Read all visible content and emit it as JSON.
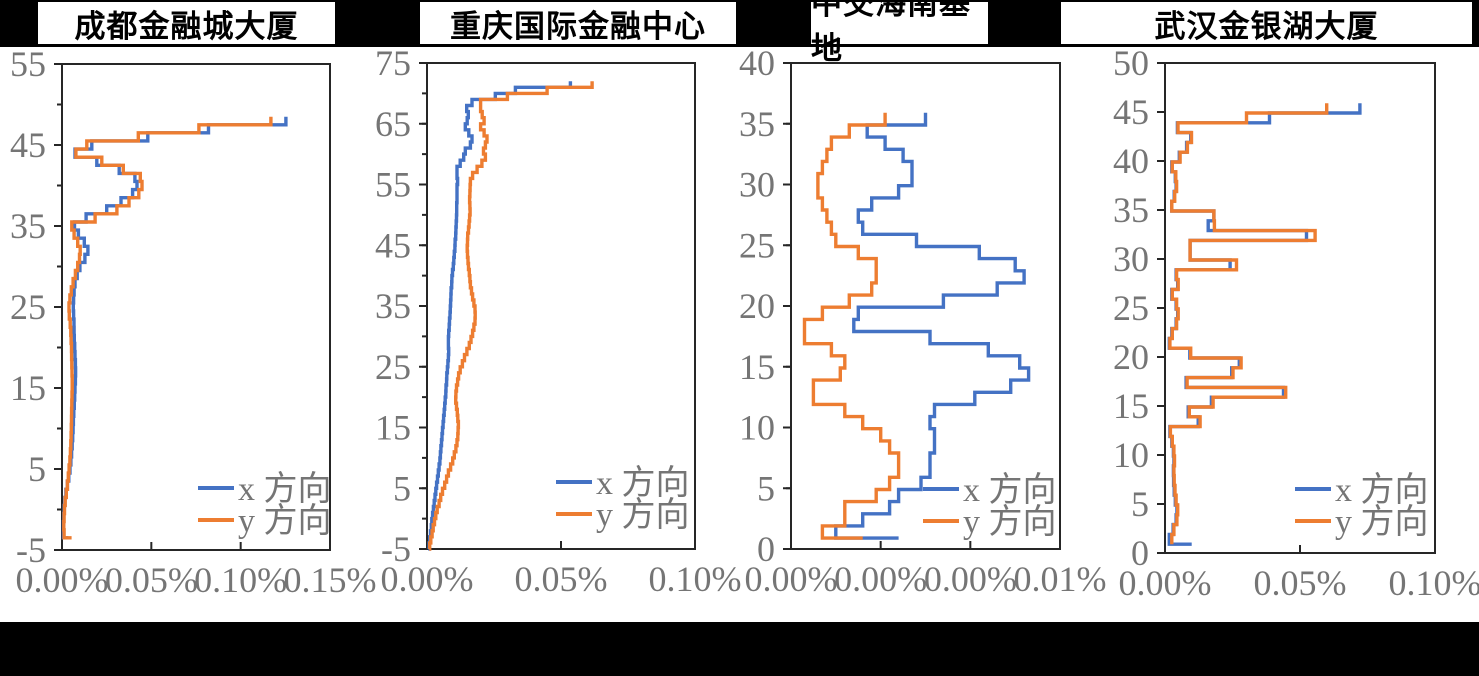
{
  "page": {
    "background": "#000000",
    "band_background": "#ffffff"
  },
  "legend": {
    "x_label": "x 方向",
    "y_label": "y 方向"
  },
  "colors": {
    "x_series": "#4472C4",
    "y_series": "#ED7D31",
    "axis": "#262626",
    "tick_text": "#757575"
  },
  "chart_data": [
    {
      "type": "line",
      "subtype": "step-profile",
      "orientation": "value-x_floor-y",
      "title": "成都金融城大厦",
      "xlabel": "",
      "ylabel": "",
      "units": "%",
      "xlim": [
        0,
        0.15
      ],
      "x_tick_labels": [
        "0.00%",
        "0.05%",
        "0.10%",
        "0.15%"
      ],
      "ylim": [
        -5,
        55
      ],
      "y_tick_labels": [
        "-5",
        "5",
        "15",
        "25",
        "35",
        "45",
        "55"
      ],
      "y_minor_step": 5,
      "legend_position": "inside-bottom-right",
      "grid": false,
      "base_floor": -3.5,
      "series": [
        {
          "name": "x 方向",
          "color": "#4472C4",
          "start": 0.0035,
          "values": [
            0.0008,
            0.0008,
            0.001,
            0.0012,
            0.0016,
            0.0022,
            0.003,
            0.0038,
            0.0045,
            0.005,
            0.0054,
            0.0057,
            0.006,
            0.0062,
            0.0064,
            0.0066,
            0.0069,
            0.0071,
            0.0073,
            0.0075,
            0.0076,
            0.0075,
            0.0073,
            0.0071,
            0.0069,
            0.0068,
            0.0067,
            0.0065,
            0.0063,
            0.0065,
            0.0068,
            0.0073,
            0.0085,
            0.01,
            0.0128,
            0.0145,
            0.0125,
            0.0092,
            0.007,
            0.0135,
            0.025,
            0.033,
            0.0395,
            0.042,
            0.0408,
            0.032,
            0.0195,
            0.0073,
            0.0167,
            0.048,
            0.082,
            0.1253
          ]
        },
        {
          "name": "y 方向",
          "color": "#ED7D31",
          "start": 0.0054,
          "values": [
            0.0012,
            0.001,
            0.0012,
            0.0014,
            0.0018,
            0.0024,
            0.003,
            0.0035,
            0.004,
            0.0044,
            0.0047,
            0.0049,
            0.0051,
            0.0052,
            0.0053,
            0.0054,
            0.0055,
            0.0056,
            0.0057,
            0.0057,
            0.0056,
            0.0055,
            0.0054,
            0.0053,
            0.0051,
            0.0049,
            0.0046,
            0.0041,
            0.0039,
            0.0044,
            0.0052,
            0.0062,
            0.0075,
            0.0088,
            0.0098,
            0.0102,
            0.0088,
            0.0068,
            0.0055,
            0.0185,
            0.0307,
            0.0375,
            0.043,
            0.0448,
            0.0438,
            0.0343,
            0.0223,
            0.0078,
            0.0139,
            0.0427,
            0.0766,
            0.1169
          ]
        }
      ]
    },
    {
      "type": "line",
      "subtype": "step-profile",
      "orientation": "value-x_floor-y",
      "title": "重庆国际金融中心",
      "xlabel": "",
      "ylabel": "",
      "units": "%",
      "xlim": [
        0,
        0.1
      ],
      "x_tick_labels": [
        "0.00%",
        "0.05%",
        "0.10%"
      ],
      "ylim": [
        -5,
        75
      ],
      "y_tick_labels": [
        "-5",
        "5",
        "15",
        "25",
        "35",
        "45",
        "55",
        "65",
        "75"
      ],
      "y_minor_step": 5,
      "legend_position": "inside-bottom-right",
      "grid": false,
      "base_floor": -5,
      "series": [
        {
          "name": "x 方向",
          "color": "#4472C4",
          "start": 0.0005,
          "values": [
            0.0008,
            0.001,
            0.0013,
            0.0016,
            0.0018,
            0.0021,
            0.0024,
            0.0027,
            0.003,
            0.0033,
            0.0036,
            0.0039,
            0.0042,
            0.0045,
            0.0048,
            0.005,
            0.0052,
            0.0054,
            0.0056,
            0.0058,
            0.006,
            0.0062,
            0.0064,
            0.0066,
            0.0068,
            0.007,
            0.0071,
            0.0073,
            0.0074,
            0.0076,
            0.0078,
            0.008,
            0.0081,
            0.008,
            0.008,
            0.0081,
            0.0083,
            0.0084,
            0.0086,
            0.0087,
            0.0088,
            0.0089,
            0.009,
            0.0092,
            0.0093,
            0.0095,
            0.0098,
            0.01,
            0.0102,
            0.0104,
            0.0105,
            0.0107,
            0.0108,
            0.0109,
            0.011,
            0.0111,
            0.0111,
            0.0112,
            0.0112,
            0.0112,
            0.0114,
            0.0112,
            0.0112,
            0.0124,
            0.0137,
            0.0143,
            0.0162,
            0.0168,
            0.0156,
            0.0143,
            0.015,
            0.0154,
            0.0148,
            0.0168,
            0.0255,
            0.033,
            0.0535
          ]
        },
        {
          "name": "y 方向",
          "color": "#ED7D31",
          "start": 0.0008,
          "values": [
            0.001,
            0.0014,
            0.0019,
            0.0023,
            0.0028,
            0.0033,
            0.0038,
            0.0045,
            0.0051,
            0.0058,
            0.0066,
            0.0073,
            0.008,
            0.0088,
            0.0096,
            0.0102,
            0.0108,
            0.0112,
            0.0115,
            0.0116,
            0.0117,
            0.0115,
            0.0113,
            0.011,
            0.0107,
            0.0108,
            0.011,
            0.0114,
            0.0118,
            0.0124,
            0.0132,
            0.014,
            0.0149,
            0.0158,
            0.0164,
            0.017,
            0.0175,
            0.0179,
            0.018,
            0.0179,
            0.0175,
            0.017,
            0.0166,
            0.0162,
            0.016,
            0.0158,
            0.0155,
            0.0153,
            0.0151,
            0.015,
            0.0151,
            0.0152,
            0.0155,
            0.0157,
            0.0159,
            0.0161,
            0.016,
            0.0159,
            0.016,
            0.0161,
            0.0162,
            0.017,
            0.0187,
            0.0205,
            0.0218,
            0.0211,
            0.0218,
            0.0224,
            0.0213,
            0.02,
            0.0213,
            0.0206,
            0.02,
            0.02,
            0.03,
            0.0448,
            0.0616
          ]
        }
      ]
    },
    {
      "type": "line",
      "subtype": "step-profile",
      "orientation": "value-x_floor-y",
      "title": "中交海南基地",
      "xlabel": "",
      "ylabel": "",
      "units": "%",
      "xlim": [
        0,
        0.006
      ],
      "x_tick_labels": [
        "0.00%",
        "0.00%",
        "0.00%",
        "0.01%"
      ],
      "ylim": [
        0,
        40
      ],
      "y_tick_labels": [
        "0",
        "5",
        "10",
        "15",
        "20",
        "25",
        "30",
        "35",
        "40"
      ],
      "y_minor_step": 5,
      "legend_position": "inside-bottom-right",
      "grid": false,
      "base_floor": 0.9,
      "series": [
        {
          "name": "x 方向",
          "color": "#4472C4",
          "start": 0.0024,
          "values": [
            0.001,
            0.0016,
            0.0022,
            0.0024,
            0.0029,
            0.0031,
            0.0031,
            0.0032,
            0.0032,
            0.0031,
            0.0032,
            0.0041,
            0.0049,
            0.0053,
            0.0051,
            0.0044,
            0.0031,
            0.0014,
            0.0015,
            0.0034,
            0.0046,
            0.0052,
            0.005,
            0.0042,
            0.0028,
            0.0016,
            0.0015,
            0.0018,
            0.0024,
            0.0027,
            0.0027,
            0.0025,
            0.0021,
            0.0017,
            0.003
          ]
        },
        {
          "name": "y 方向",
          "color": "#ED7D31",
          "start": 0.0016,
          "values": [
            0.0007,
            0.0012,
            0.0012,
            0.0019,
            0.0022,
            0.0024,
            0.0024,
            0.0022,
            0.002,
            0.0016,
            0.0012,
            0.0005,
            0.0005,
            0.0011,
            0.0012,
            0.0009,
            0.0003,
            0.0003,
            0.0007,
            0.0013,
            0.0018,
            0.0019,
            0.0019,
            0.0015,
            0.001,
            0.0009,
            0.0008,
            0.0007,
            0.0006,
            0.0006,
            0.0007,
            0.0008,
            0.0009,
            0.0013,
            0.0021
          ]
        }
      ]
    },
    {
      "type": "line",
      "subtype": "step-profile",
      "orientation": "value-x_floor-y",
      "title": "武汉金银湖大厦",
      "xlabel": "",
      "ylabel": "",
      "units": "%",
      "xlim": [
        0,
        0.1
      ],
      "x_tick_labels": [
        "0.00%",
        "0.05%",
        "0.10%"
      ],
      "ylim": [
        0,
        50
      ],
      "y_tick_labels": [
        "0",
        "5",
        "10",
        "15",
        "20",
        "25",
        "30",
        "35",
        "40",
        "45",
        "50"
      ],
      "y_minor_step": 5,
      "legend_position": "inside-bottom-right",
      "grid": false,
      "base_floor": 0.9,
      "series": [
        {
          "name": "x 方向",
          "color": "#4472C4",
          "start": 0.0099,
          "values": [
            0.0016,
            0.003,
            0.0041,
            0.0044,
            0.0038,
            0.0034,
            0.0032,
            0.0031,
            0.0033,
            0.0031,
            0.0025,
            0.0018,
            0.0123,
            0.0086,
            0.0172,
            0.0439,
            0.0078,
            0.0247,
            0.0275,
            0.0092,
            0.0016,
            0.0025,
            0.0041,
            0.0047,
            0.0041,
            0.0025,
            0.0047,
            0.0041,
            0.0241,
            0.0093,
            0.0093,
            0.0524,
            0.016,
            0.0181,
            0.0025,
            0.0034,
            0.0041,
            0.0038,
            0.0025,
            0.0053,
            0.008,
            0.0095,
            0.0046,
            0.0387,
            0.0722
          ]
        },
        {
          "name": "y 方向",
          "color": "#ED7D31",
          "start": 0.0025,
          "values": [
            0.0025,
            0.0033,
            0.0044,
            0.0047,
            0.0041,
            0.0037,
            0.0034,
            0.0033,
            0.0035,
            0.0033,
            0.0027,
            0.002,
            0.013,
            0.009,
            0.0178,
            0.0447,
            0.0082,
            0.0252,
            0.0282,
            0.0095,
            0.0018,
            0.0027,
            0.0043,
            0.0049,
            0.0043,
            0.0027,
            0.0049,
            0.0043,
            0.0265,
            0.0093,
            0.0093,
            0.0556,
            0.0183,
            0.0181,
            0.0025,
            0.0036,
            0.0043,
            0.004,
            0.0027,
            0.0056,
            0.0083,
            0.0098,
            0.0048,
            0.0302,
            0.0599
          ]
        }
      ]
    }
  ]
}
